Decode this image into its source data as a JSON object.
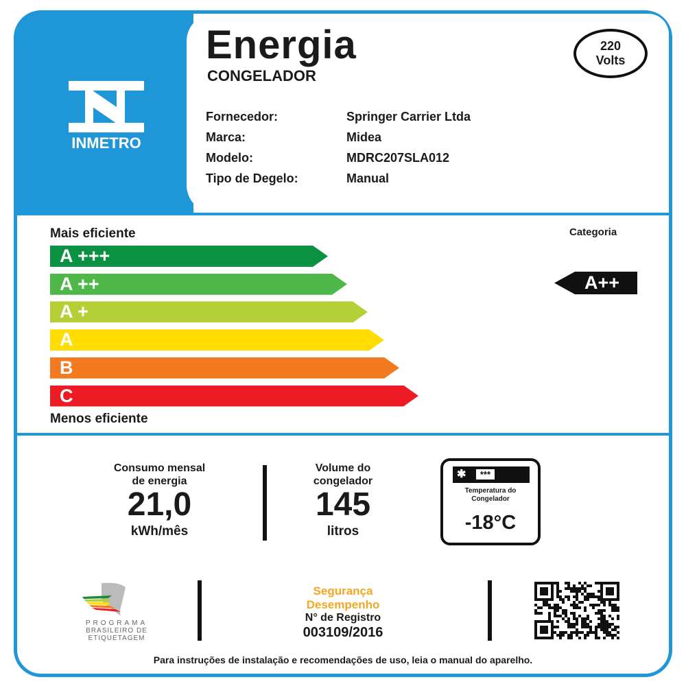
{
  "header": {
    "title": "Energia",
    "subtitle": "CONGELADOR",
    "voltage": "220",
    "voltage_unit": "Volts",
    "logo_text": "INMETRO"
  },
  "info": [
    {
      "label": "Fornecedor:",
      "value": "Springer Carrier Ltda"
    },
    {
      "label": "Marca:",
      "value": "Midea"
    },
    {
      "label": "Modelo:",
      "value": "MDRC207SLA012"
    },
    {
      "label": "Tipo de Degelo:",
      "value": "Manual"
    }
  ],
  "scale": {
    "top_label": "Mais eficiente",
    "bottom_label": "Menos eficiente",
    "category_label": "Categoria",
    "category_value": "A++",
    "classes": [
      {
        "label": "A +++",
        "color": "#0a9142"
      },
      {
        "label": "A ++",
        "color": "#4db848"
      },
      {
        "label": "A +",
        "color": "#b5cf36"
      },
      {
        "label": "A",
        "color": "#ffdd00"
      },
      {
        "label": "B",
        "color": "#f27b22"
      },
      {
        "label": "C",
        "color": "#ed1c24"
      }
    ]
  },
  "consumption": {
    "label1": "Consumo mensal",
    "label2": "de energia",
    "value": "21,0",
    "unit": "kWh/mês"
  },
  "volume": {
    "label1": "Volume do",
    "label2": "congelador",
    "value": "145",
    "unit": "litros"
  },
  "temperature": {
    "label1": "Temperatura do",
    "label2": "Congelador",
    "value": "-18°C",
    "stars": "***"
  },
  "footer": {
    "program1": "PROGRAMA",
    "program2": "BRASILEIRO DE",
    "program3": "ETIQUETAGEM",
    "seg1": "Segurança",
    "seg2": "Desempenho",
    "reg_label": "N° de Registro",
    "reg_value": "003109/2016",
    "note": "Para instruções de instalação e recomendações de uso, leia o manual do aparelho.",
    "accent": "#f5a623"
  }
}
